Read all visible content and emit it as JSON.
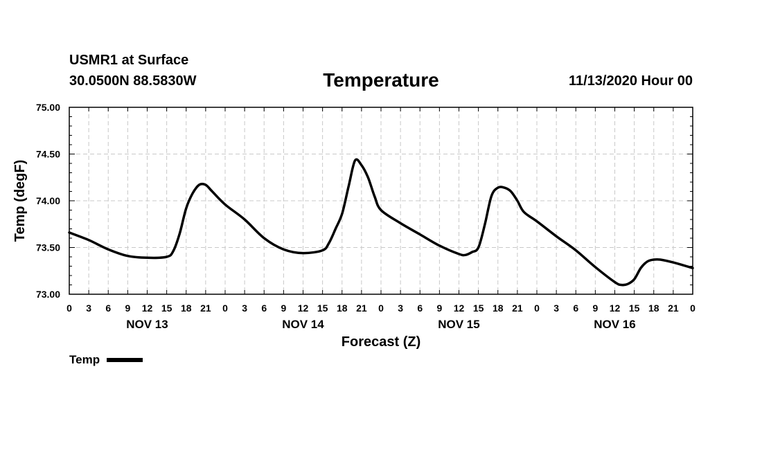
{
  "header": {
    "station": "USMR1 at Surface",
    "coords": "30.0500N 88.5830W",
    "title": "Temperature",
    "valid": "11/13/2020 Hour 00"
  },
  "legend": {
    "label": "Temp",
    "color": "#000000"
  },
  "chart_data": {
    "type": "line",
    "title": "Temperature",
    "xlabel": "Forecast (Z)",
    "ylabel": "Temp (degF)",
    "ylim": [
      73.0,
      75.0
    ],
    "xlim": [
      0,
      96
    ],
    "grid": true,
    "y_ticks": [
      "73.00",
      "73.50",
      "74.00",
      "74.50",
      "75.00"
    ],
    "x_tick_labels": [
      "0",
      "3",
      "6",
      "9",
      "12",
      "15",
      "18",
      "21",
      "0",
      "3",
      "6",
      "9",
      "12",
      "15",
      "18",
      "21",
      "0",
      "3",
      "6",
      "9",
      "12",
      "15",
      "18",
      "21",
      "0",
      "3",
      "6",
      "9",
      "12",
      "15",
      "18",
      "21",
      "0"
    ],
    "day_labels": [
      {
        "label": "NOV 13",
        "hour": 12
      },
      {
        "label": "NOV 14",
        "hour": 36
      },
      {
        "label": "NOV 15",
        "hour": 60
      },
      {
        "label": "NOV 16",
        "hour": 84
      }
    ],
    "series": [
      {
        "name": "Temp",
        "x": [
          0,
          3,
          6,
          9,
          12,
          15,
          16,
          17,
          18,
          19,
          20,
          21,
          22,
          24,
          27,
          30,
          33,
          36,
          39,
          40,
          41,
          42,
          43,
          44,
          45,
          46,
          47,
          48,
          51,
          54,
          57,
          60,
          61,
          62,
          63,
          64,
          65,
          66,
          67,
          68,
          69,
          70,
          72,
          75,
          78,
          81,
          84,
          85,
          86,
          87,
          88,
          89,
          90,
          91,
          93,
          96
        ],
        "values": [
          73.66,
          73.58,
          73.48,
          73.41,
          73.39,
          73.4,
          73.46,
          73.65,
          73.92,
          74.08,
          74.17,
          74.17,
          74.1,
          73.96,
          73.8,
          73.6,
          73.48,
          73.44,
          73.47,
          73.55,
          73.7,
          73.86,
          74.15,
          74.43,
          74.38,
          74.25,
          74.05,
          73.9,
          73.76,
          73.64,
          73.52,
          73.43,
          73.42,
          73.45,
          73.5,
          73.75,
          74.05,
          74.14,
          74.14,
          74.1,
          74.0,
          73.88,
          73.78,
          73.62,
          73.47,
          73.29,
          73.13,
          73.1,
          73.11,
          73.16,
          73.28,
          73.35,
          73.37,
          73.37,
          73.34,
          73.28
        ]
      }
    ]
  }
}
